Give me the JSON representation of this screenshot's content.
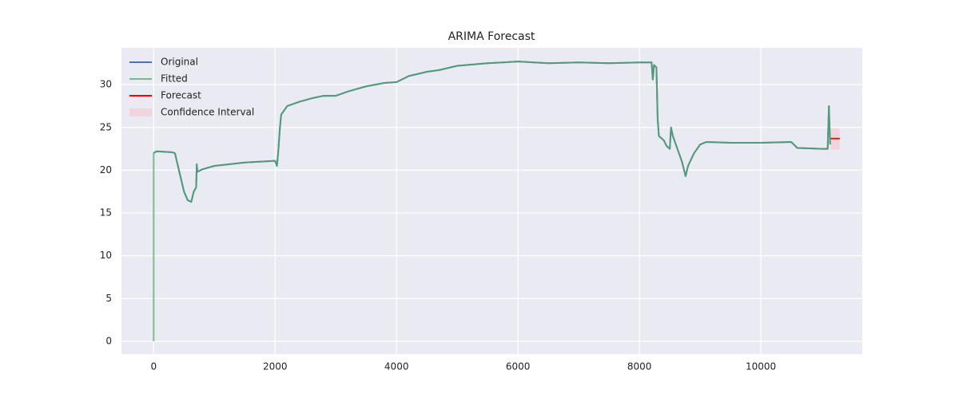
{
  "chart_data": {
    "type": "line",
    "title": "ARIMA Forecast",
    "xlim": [
      -530,
      11670
    ],
    "ylim": [
      -1.5,
      34.3
    ],
    "xticks": [
      0,
      2000,
      4000,
      6000,
      8000,
      10000
    ],
    "yticks": [
      0,
      5,
      10,
      15,
      20,
      25,
      30
    ],
    "grid": true,
    "legend": "upper left",
    "series": [
      {
        "name": "Original",
        "color": "#4c72b0",
        "x": [
          0,
          50,
          300,
          350,
          400,
          450,
          500,
          560,
          620,
          660,
          700,
          710,
          720,
          800,
          1000,
          1500,
          2000,
          2030,
          2050,
          2080,
          2100,
          2200,
          2400,
          2600,
          2800,
          3000,
          3200,
          3500,
          3800,
          4000,
          4200,
          4500,
          4700,
          5000,
          5500,
          6000,
          6500,
          7000,
          7500,
          8000,
          8200,
          8220,
          8240,
          8280,
          8300,
          8320,
          8400,
          8450,
          8500,
          8520,
          8550,
          8600,
          8700,
          8760,
          8800,
          8900,
          9000,
          9100,
          9500,
          10000,
          10500,
          10600,
          11000,
          11100,
          11120,
          11140
        ],
        "values": [
          22,
          22.2,
          22.1,
          22.0,
          20.5,
          19,
          17.5,
          16.5,
          16.3,
          17.5,
          18,
          20.7,
          19.8,
          20.1,
          20.5,
          20.9,
          21.1,
          20.5,
          22,
          25,
          26.5,
          27.5,
          28,
          28.4,
          28.7,
          28.7,
          29.2,
          29.8,
          30.2,
          30.3,
          31,
          31.5,
          31.7,
          32.2,
          32.5,
          32.7,
          32.5,
          32.6,
          32.5,
          32.6,
          32.6,
          30.6,
          32.3,
          32.0,
          26,
          24,
          23.5,
          22.8,
          22.5,
          25,
          24,
          23,
          21,
          19.3,
          20.5,
          22,
          23,
          23.3,
          23.2,
          23.2,
          23.3,
          22.6,
          22.5,
          22.5,
          27.5,
          23
        ]
      },
      {
        "name": "Fitted",
        "color": "#55a868",
        "x": [
          0,
          0,
          50,
          300,
          350,
          400,
          450,
          500,
          560,
          620,
          660,
          700,
          710,
          720,
          800,
          1000,
          1500,
          2000,
          2030,
          2050,
          2080,
          2100,
          2200,
          2400,
          2600,
          2800,
          3000,
          3200,
          3500,
          3800,
          4000,
          4200,
          4500,
          4700,
          5000,
          5500,
          6000,
          6500,
          7000,
          7500,
          8000,
          8200,
          8220,
          8240,
          8280,
          8300,
          8320,
          8400,
          8450,
          8500,
          8520,
          8550,
          8600,
          8700,
          8760,
          8800,
          8900,
          9000,
          9100,
          9500,
          10000,
          10500,
          10600,
          11000,
          11100,
          11120,
          11140
        ],
        "values": [
          0,
          22,
          22.2,
          22.1,
          22.0,
          20.5,
          19,
          17.5,
          16.5,
          16.3,
          17.5,
          18,
          20.7,
          19.8,
          20.1,
          20.5,
          20.9,
          21.1,
          20.5,
          22,
          25,
          26.5,
          27.5,
          28,
          28.4,
          28.7,
          28.7,
          29.2,
          29.8,
          30.2,
          30.3,
          31,
          31.5,
          31.7,
          32.2,
          32.5,
          32.7,
          32.5,
          32.6,
          32.5,
          32.6,
          32.6,
          30.6,
          32.3,
          32.0,
          26,
          24,
          23.5,
          22.8,
          22.5,
          25,
          24,
          23,
          21,
          19.3,
          20.5,
          22,
          23,
          23.3,
          23.2,
          23.2,
          23.3,
          22.6,
          22.5,
          22.5,
          27.5,
          23
        ]
      },
      {
        "name": "Forecast",
        "color": "#ff0000",
        "x": [
          11150,
          11300
        ],
        "values": [
          23.7,
          23.7
        ]
      }
    ],
    "confidence_interval": {
      "name": "Confidence Interval",
      "color": "#f4c6d0",
      "x": [
        11150,
        11300
      ],
      "lower": [
        22.4,
        22.4
      ],
      "upper": [
        24.9,
        24.9
      ]
    }
  }
}
